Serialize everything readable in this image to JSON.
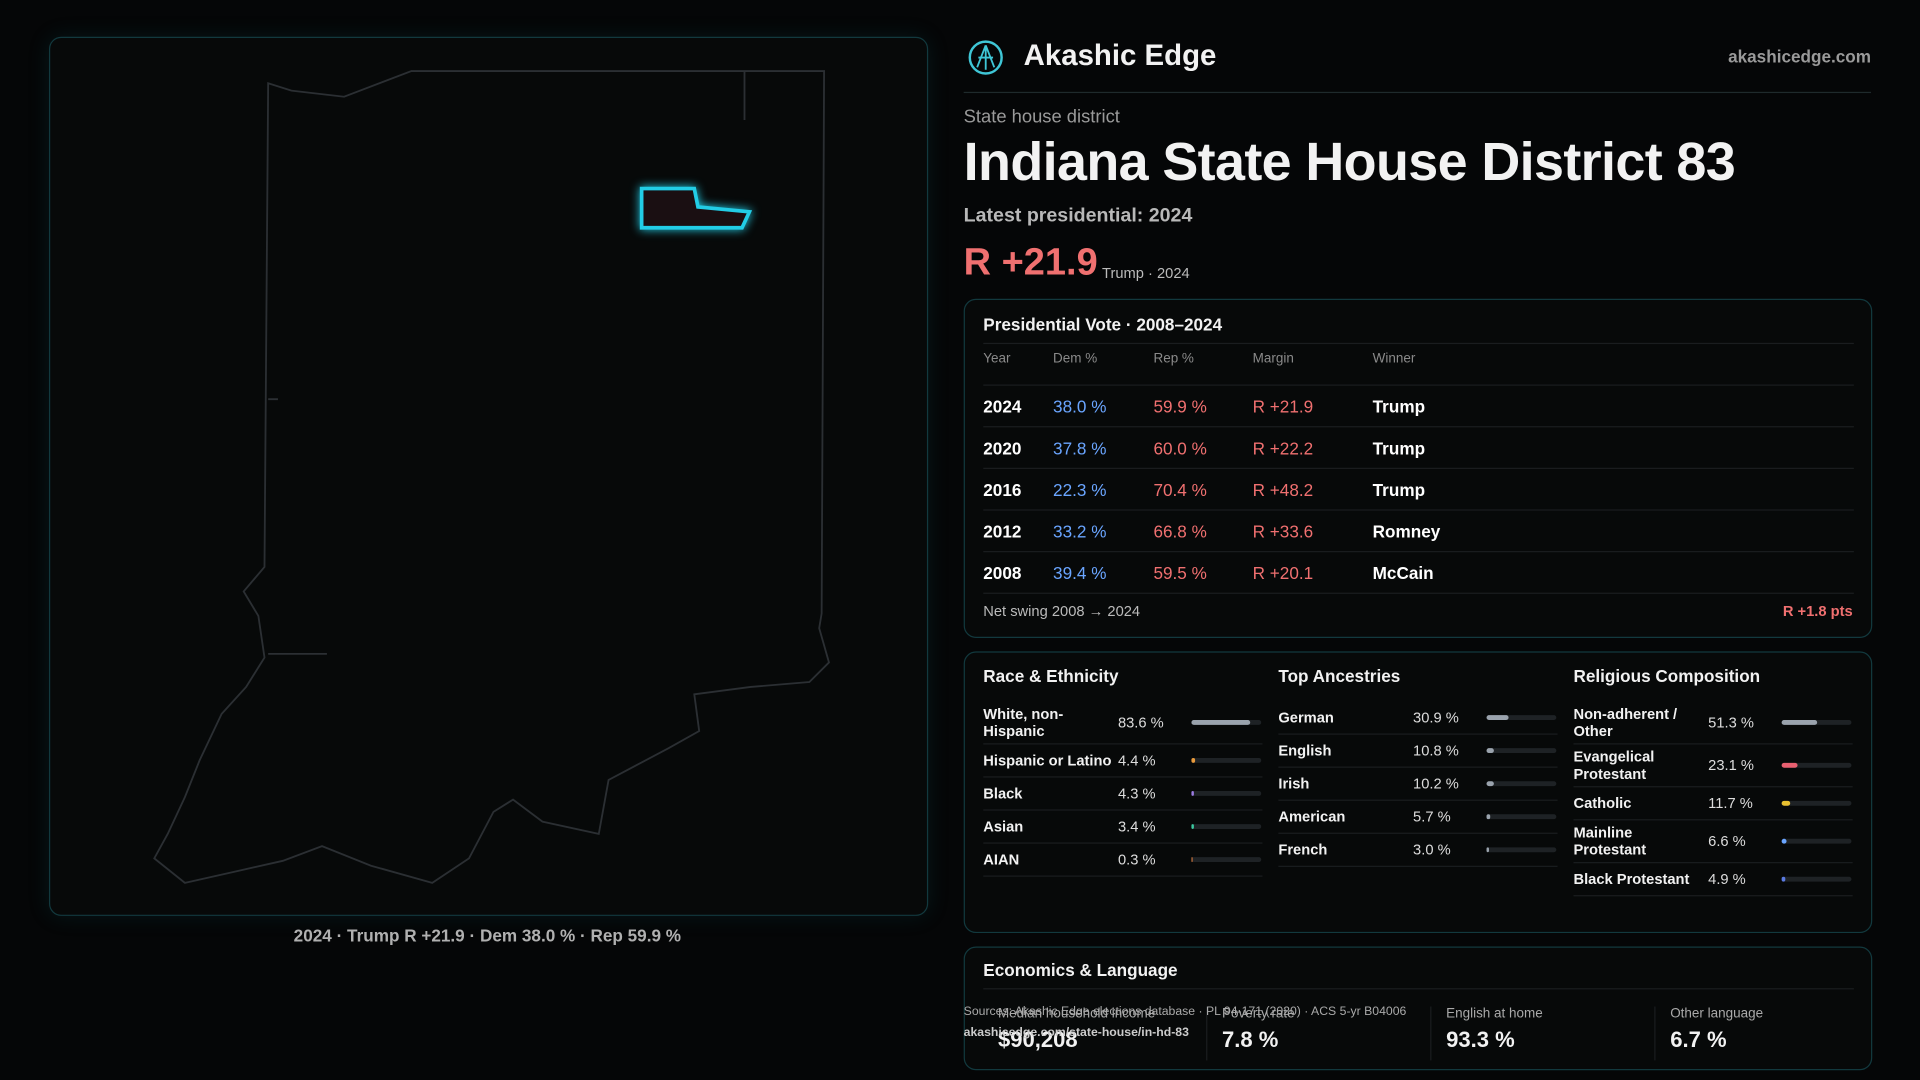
{
  "brand": {
    "name": "Akashic Edge",
    "site": "akashicedge.com"
  },
  "header": {
    "kicker": "State house district",
    "title": "Indiana State House District 83",
    "latest": "Latest presidential: 2024",
    "margin": "R +21.9",
    "margin_note": "Trump · 2024"
  },
  "map": {
    "caption": "2024 · Trump R +21.9 · Dem 38.0 % · Rep 59.9 %"
  },
  "presidential": {
    "title": "Presidential Vote · 2008–2024",
    "columns": [
      "Year",
      "Dem %",
      "Rep %",
      "Margin",
      "Winner"
    ],
    "rows": [
      [
        "2024",
        "38.0 %",
        "59.9 %",
        "R +21.9",
        "Trump"
      ],
      [
        "2020",
        "37.8 %",
        "60.0 %",
        "R +22.2",
        "Trump"
      ],
      [
        "2016",
        "22.3 %",
        "70.4 %",
        "R +48.2",
        "Trump"
      ],
      [
        "2012",
        "33.2 %",
        "66.8 %",
        "R +33.6",
        "Romney"
      ],
      [
        "2008",
        "39.4 %",
        "59.5 %",
        "R +20.1",
        "McCain"
      ]
    ],
    "swing_label": "Net swing 2008 → 2024",
    "swing": "R +1.8 pts"
  },
  "demographics": [
    {
      "title": "Race & Ethnicity",
      "labels": [
        "White, non-Hispanic",
        "Hispanic or Latino",
        "Black",
        "Asian",
        "AIAN"
      ],
      "values": [
        83.6,
        4.4,
        4.3,
        3.4,
        0.3
      ],
      "value_labels": [
        "83.6 %",
        "4.4 %",
        "4.3 %",
        "3.4 %",
        "0.3 %"
      ],
      "colors": [
        "#9aa3ad",
        "#e89a3c",
        "#9a7be0",
        "#3cc9a0",
        "#c0703c"
      ]
    },
    {
      "title": "Top Ancestries",
      "labels": [
        "German",
        "English",
        "Irish",
        "American",
        "French"
      ],
      "values": [
        30.9,
        10.8,
        10.2,
        5.7,
        3.0
      ],
      "value_labels": [
        "30.9 %",
        "10.8 %",
        "10.2 %",
        "5.7 %",
        "3.0 %"
      ],
      "colors": [
        "#9aa3ad",
        "#9aa3ad",
        "#9aa3ad",
        "#9aa3ad",
        "#9aa3ad"
      ]
    },
    {
      "title": "Religious Composition",
      "labels": [
        "Non-adherent / Other",
        "Evangelical Protestant",
        "Catholic",
        "Mainline Protestant",
        "Black Protestant"
      ],
      "values": [
        51.3,
        23.1,
        11.7,
        6.6,
        4.9
      ],
      "value_labels": [
        "51.3 %",
        "23.1 %",
        "11.7 %",
        "6.6 %",
        "4.9 %"
      ],
      "colors": [
        "#9aa3ad",
        "#e86070",
        "#e8c030",
        "#6aa5ff",
        "#5a7ae0"
      ]
    }
  ],
  "economics": {
    "title": "Economics & Language",
    "items": [
      {
        "label": "Median household income",
        "value": "$90,208"
      },
      {
        "label": "Poverty rate",
        "value": "7.8 %"
      },
      {
        "label": "English at home",
        "value": "93.3 %"
      },
      {
        "label": "Other language",
        "value": "6.7 %"
      }
    ]
  },
  "footer": {
    "sources": "Sources: Akashic Edge elections database · PL 94-171 (2020) · ACS 5-yr B04006",
    "url": "akashicedge.com/state-house/in-hd-83"
  }
}
